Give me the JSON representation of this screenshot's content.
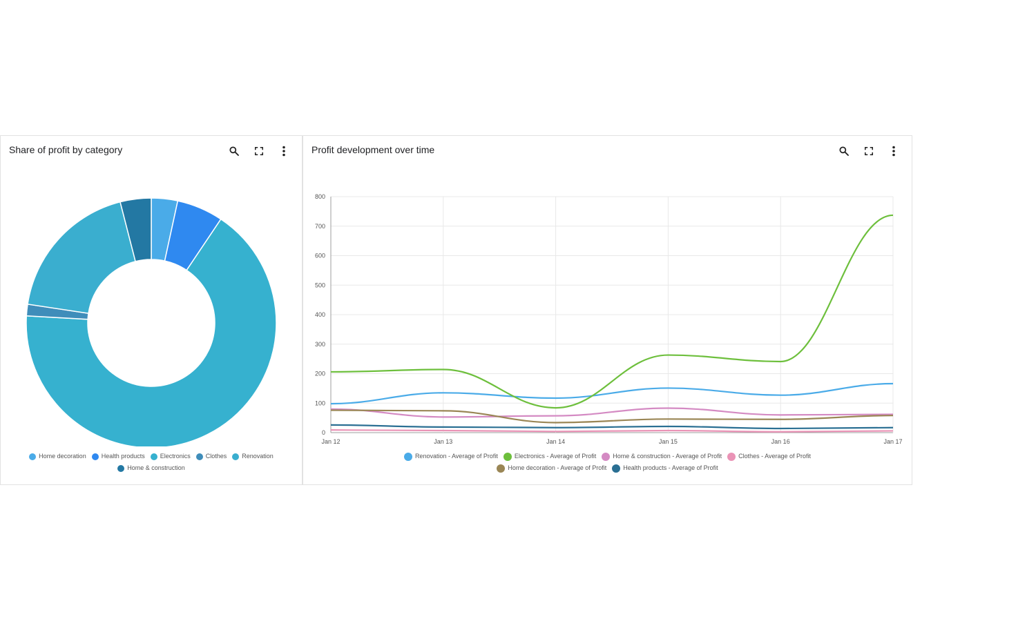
{
  "pie_panel": {
    "title": "Share of profit by category",
    "icons": [
      "search-icon",
      "fullscreen-icon",
      "more-vert-icon"
    ]
  },
  "line_panel": {
    "title": "Profit development over time",
    "icons": [
      "search-icon",
      "fullscreen-icon",
      "more-vert-icon"
    ]
  },
  "chart_data": [
    {
      "type": "pie",
      "donut": true,
      "title": "Share of profit by category",
      "categories": [
        "Home decoration",
        "Health products",
        "Electronics",
        "Clothes",
        "Renovation",
        "Home & construction"
      ],
      "values": [
        3.4,
        6.0,
        66.5,
        1.5,
        18.6,
        4.0
      ],
      "colors": [
        "#4aabe8",
        "#2f89f0",
        "#36b1cf",
        "#3f8dba",
        "#3aaecf",
        "#2378a3"
      ],
      "legend": "bottom"
    },
    {
      "type": "line",
      "title": "Profit development over time",
      "x": [
        "Jan 12",
        "Jan 13",
        "Jan 14",
        "Jan 15",
        "Jan 16",
        "Jan 17"
      ],
      "ylim": [
        0,
        800
      ],
      "yticks": [
        0,
        100,
        200,
        300,
        400,
        500,
        600,
        700,
        800
      ],
      "grid": true,
      "legend": "bottom",
      "series": [
        {
          "name": "Renovation - Average of Profit",
          "color": "#4aabe8",
          "values": [
            98,
            135,
            117,
            151,
            127,
            166
          ]
        },
        {
          "name": "Electronics - Average of Profit",
          "color": "#6dbf3c",
          "values": [
            206,
            214,
            84,
            263,
            241,
            737
          ]
        },
        {
          "name": "Home & construction - Average of Profit",
          "color": "#d48ac3",
          "values": [
            80,
            53,
            57,
            83,
            60,
            62
          ]
        },
        {
          "name": "Clothes - Average of Profit",
          "color": "#ea93b6",
          "values": [
            9,
            7,
            4,
            7,
            3,
            6
          ]
        },
        {
          "name": "Home decoration - Average of Profit",
          "color": "#9a8655",
          "values": [
            76,
            74,
            34,
            46,
            45,
            58
          ]
        },
        {
          "name": "Health products - Average of Profit",
          "color": "#2a6f93",
          "values": [
            26,
            19,
            17,
            21,
            14,
            17
          ]
        }
      ]
    }
  ]
}
